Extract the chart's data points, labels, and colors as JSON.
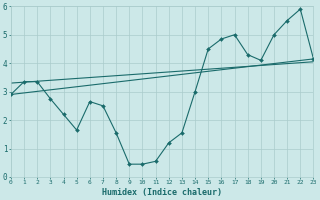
{
  "xlabel": "Humidex (Indice chaleur)",
  "bg_color": "#cce8e8",
  "line_color": "#1a6b6b",
  "grid_color": "#aacccc",
  "xlim": [
    0,
    23
  ],
  "ylim": [
    0,
    6
  ],
  "xticks": [
    0,
    1,
    2,
    3,
    4,
    5,
    6,
    7,
    8,
    9,
    10,
    11,
    12,
    13,
    14,
    15,
    16,
    17,
    18,
    19,
    20,
    21,
    22,
    23
  ],
  "yticks": [
    0,
    1,
    2,
    3,
    4,
    5,
    6
  ],
  "line1_x": [
    0,
    1,
    2,
    3,
    4,
    5,
    6,
    7,
    8,
    9,
    10,
    11,
    12,
    13,
    14,
    15,
    16,
    17,
    18,
    19,
    20,
    21,
    22,
    23
  ],
  "line1_y": [
    2.9,
    3.35,
    3.35,
    2.75,
    2.2,
    1.65,
    2.65,
    2.5,
    1.55,
    0.45,
    0.45,
    0.55,
    1.2,
    1.55,
    3.0,
    4.5,
    4.85,
    5.0,
    4.3,
    4.1,
    5.0,
    5.5,
    5.9,
    4.15
  ],
  "line2_x": [
    0,
    23
  ],
  "line2_y": [
    2.9,
    4.15
  ],
  "line3_x": [
    0,
    23
  ],
  "line3_y": [
    3.3,
    4.05
  ]
}
